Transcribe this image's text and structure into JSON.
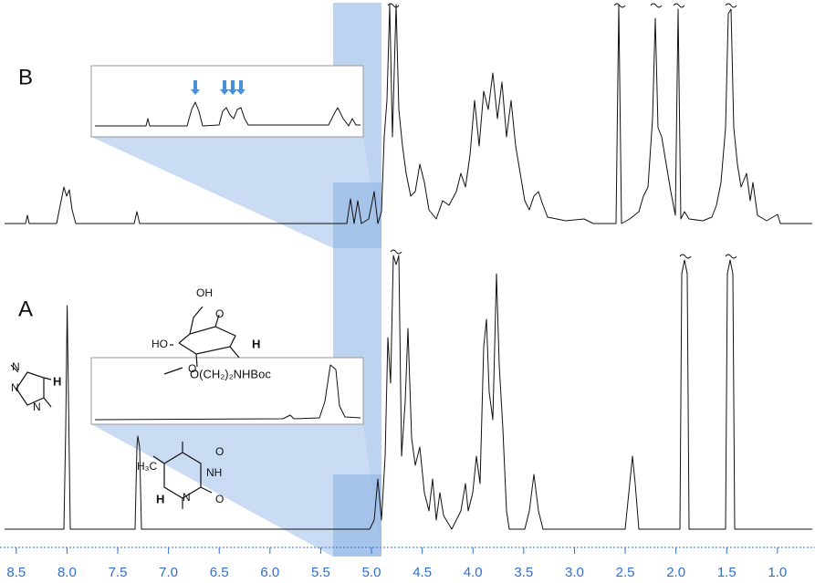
{
  "chart_data": {
    "type": "spectrum",
    "xlim": [
      8.66,
      0.63
    ],
    "xticks": [
      8.5,
      {
        "value": 8,
        "label": "8.0"
      },
      7.5,
      {
        "value": 7,
        "label": "7.0"
      },
      6.5,
      {
        "value": 6,
        "label": "6.0"
      },
      5.5,
      {
        "value": 5,
        "label": "5.0"
      },
      4.5,
      {
        "value": 4,
        "label": "4.0"
      },
      3.5,
      {
        "value": 3,
        "label": "3.0"
      },
      2.5,
      {
        "value": 2,
        "label": "2.0"
      },
      1.5,
      {
        "value": 1,
        "label": "1.0"
      }
    ],
    "axis_color": "#2f6fd1",
    "annotations": [
      "B",
      "A",
      "OH",
      "O",
      "HO",
      "O",
      "H",
      "O(CH₂)₂NHBoc",
      "N",
      "N",
      "N",
      "H",
      "H₃C",
      "O",
      "NH",
      "N",
      "O",
      "H"
    ]
  }
}
